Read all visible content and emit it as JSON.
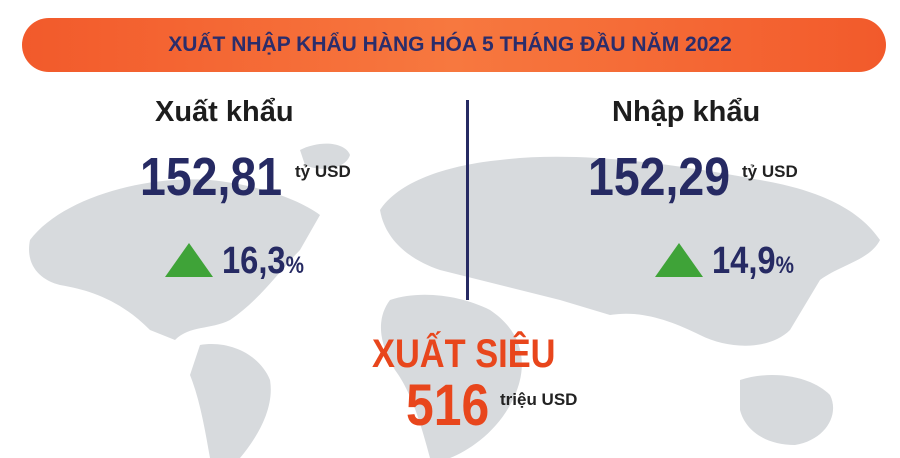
{
  "header": {
    "title": "XUẤT NHẬP KHẨU HÀNG HÓA 5 THÁNG ĐẦU NĂM 2022"
  },
  "export": {
    "label": "Xuất khẩu",
    "value": "152,81",
    "unit": "tỷ USD",
    "growth": "16,3",
    "growth_unit": "%"
  },
  "import": {
    "label": "Nhập khẩu",
    "value": "152,29",
    "unit": "tỷ USD",
    "growth": "14,9",
    "growth_unit": "%"
  },
  "surplus": {
    "label": "XUẤT SIÊU",
    "value": "516",
    "unit": "triệu USD"
  }
}
